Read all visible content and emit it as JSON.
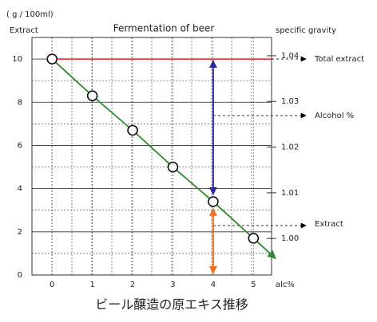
{
  "chart_data": {
    "type": "line",
    "title": "Fermentation of beer",
    "y_unit": "( g / 100ml)",
    "ylabel": "Extract",
    "y2label": "specific gravity",
    "xlabel": "alc%",
    "caption": "ビール醸造の原エキス推移",
    "x": [
      0,
      1,
      2,
      3,
      4,
      5
    ],
    "series": [
      {
        "color": "#2e8b2e",
        "values": [
          10,
          8.3,
          6.7,
          5.0,
          3.4,
          1.7
        ]
      }
    ],
    "xlim": [
      -0.5,
      5.45
    ],
    "xticks": [
      0,
      1,
      2,
      3,
      4,
      5
    ],
    "ylim": [
      0,
      11
    ],
    "yticks": [
      0,
      2,
      4,
      6,
      8,
      10
    ],
    "y2lim": [
      0.992,
      1.044
    ],
    "y2ticks": [
      {
        "value": 1.0,
        "label": "1.00"
      },
      1.01,
      1.02,
      1.03,
      1.04
    ],
    "annotations": [
      "Total extract",
      "Alcohol %",
      "Extract"
    ],
    "total_line_color": "#e02020",
    "alcohol_arrow_color": "#2a2aa0",
    "extract_arrow_color": "#f07020",
    "grid": true
  }
}
